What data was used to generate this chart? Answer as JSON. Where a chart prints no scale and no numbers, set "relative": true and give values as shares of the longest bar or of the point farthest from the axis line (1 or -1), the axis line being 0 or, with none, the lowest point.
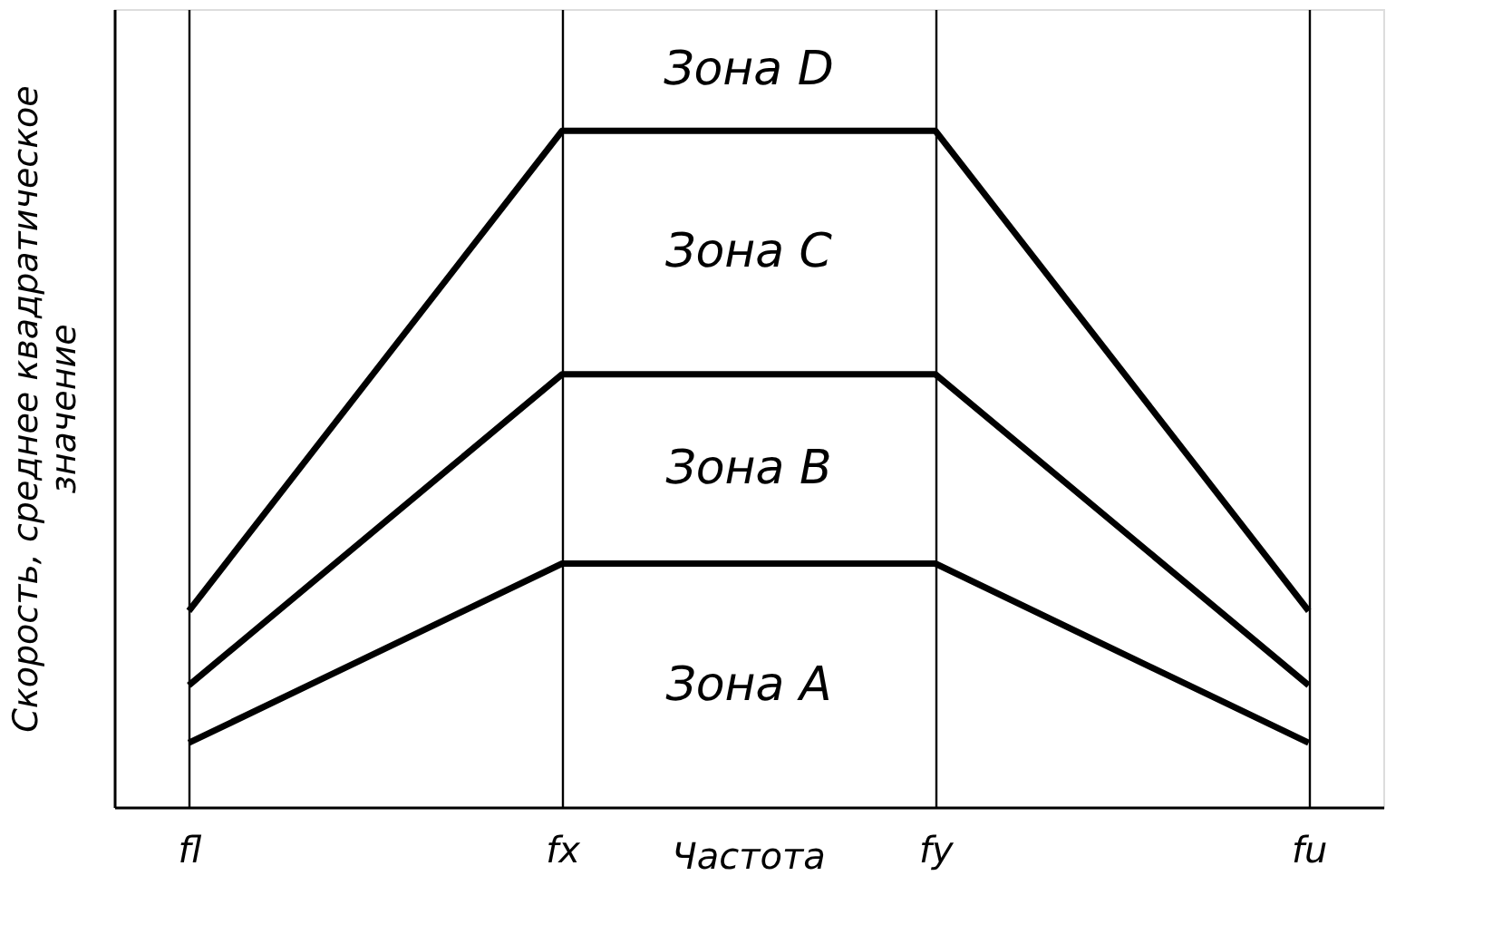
{
  "chart_data": {
    "type": "line",
    "relative": true,
    "categories": [
      "fl",
      "fx",
      "fy",
      "fu"
    ],
    "xlabel": "Частота",
    "ylabel": "Скорость, среднее квадратическое значение",
    "series": [
      {
        "color": "#000000",
        "values": [
          0.095,
          0.36,
          0.36,
          0.095
        ]
      },
      {
        "color": "#000000",
        "values": [
          0.18,
          0.64,
          0.64,
          0.18
        ]
      },
      {
        "color": "#000000",
        "values": [
          0.29,
          1,
          1,
          0.29
        ]
      }
    ],
    "annotations": [
      "Зона A",
      "Зона B",
      "Зона C",
      "Зона D"
    ],
    "grid": "x",
    "marker": "none",
    "line_style": "solid"
  }
}
